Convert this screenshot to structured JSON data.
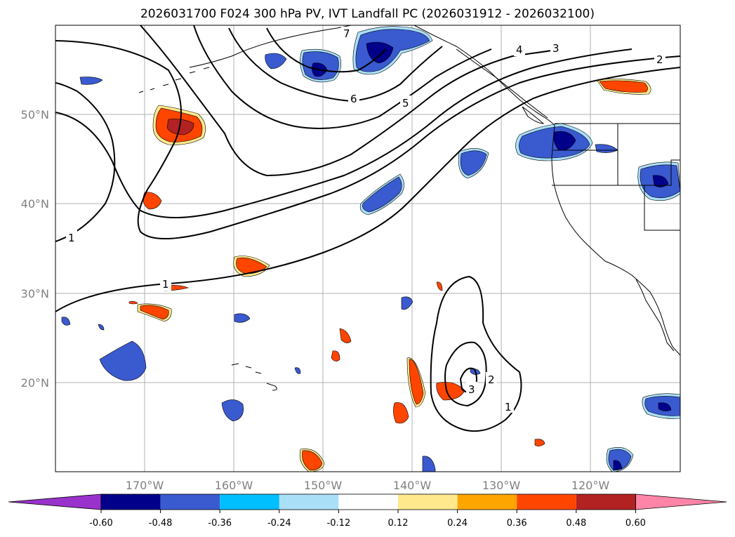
{
  "title": "2026031700 F024 300 hPa PV, IVT Landfall PC (2026031912 - 2026032100)",
  "map": {
    "projection": "PlateCarree",
    "extent": {
      "lon_min": -180,
      "lon_max": -110,
      "lat_min": 10,
      "lat_max": 60
    },
    "lat_ticks": [
      {
        "value": 20,
        "label": "20°N"
      },
      {
        "value": 30,
        "label": "30°N"
      },
      {
        "value": 40,
        "label": "40°N"
      },
      {
        "value": 50,
        "label": "50°N"
      }
    ],
    "lon_ticks": [
      {
        "value": -170,
        "label": "170°W"
      },
      {
        "value": -160,
        "label": "160°W"
      },
      {
        "value": -150,
        "label": "150°W"
      },
      {
        "value": -140,
        "label": "140°W"
      },
      {
        "value": -130,
        "label": "130°W"
      },
      {
        "value": -120,
        "label": "120°W"
      }
    ],
    "contour_labels": [
      "1",
      "1",
      "1",
      "2",
      "2",
      "3",
      "3",
      "4",
      "5",
      "6",
      "7"
    ]
  },
  "colorbar": {
    "ticks": [
      "-0.60",
      "-0.48",
      "-0.36",
      "-0.24",
      "-0.12",
      "0.12",
      "0.24",
      "0.36",
      "0.48",
      "0.60"
    ],
    "colors": {
      "lt_-0.60": "#9932cc",
      "-0.60_-0.48": "#00008b",
      "-0.48_-0.36": "#3a5ad0",
      "-0.36_-0.24": "#00bfff",
      "-0.24_-0.12": "#aadff8",
      "-0.12_0.12": "#ffffff",
      "0.12_0.24": "#ffe98c",
      "0.24_0.36": "#ffa500",
      "0.36_0.48": "#ff4500",
      "0.48_0.60": "#b22222",
      "gt_0.60": "#ff85a8"
    }
  },
  "colors": {
    "grid": "#b0b0b0",
    "coast": "#000000",
    "contour": "#000000",
    "tick_label": "#808080"
  }
}
